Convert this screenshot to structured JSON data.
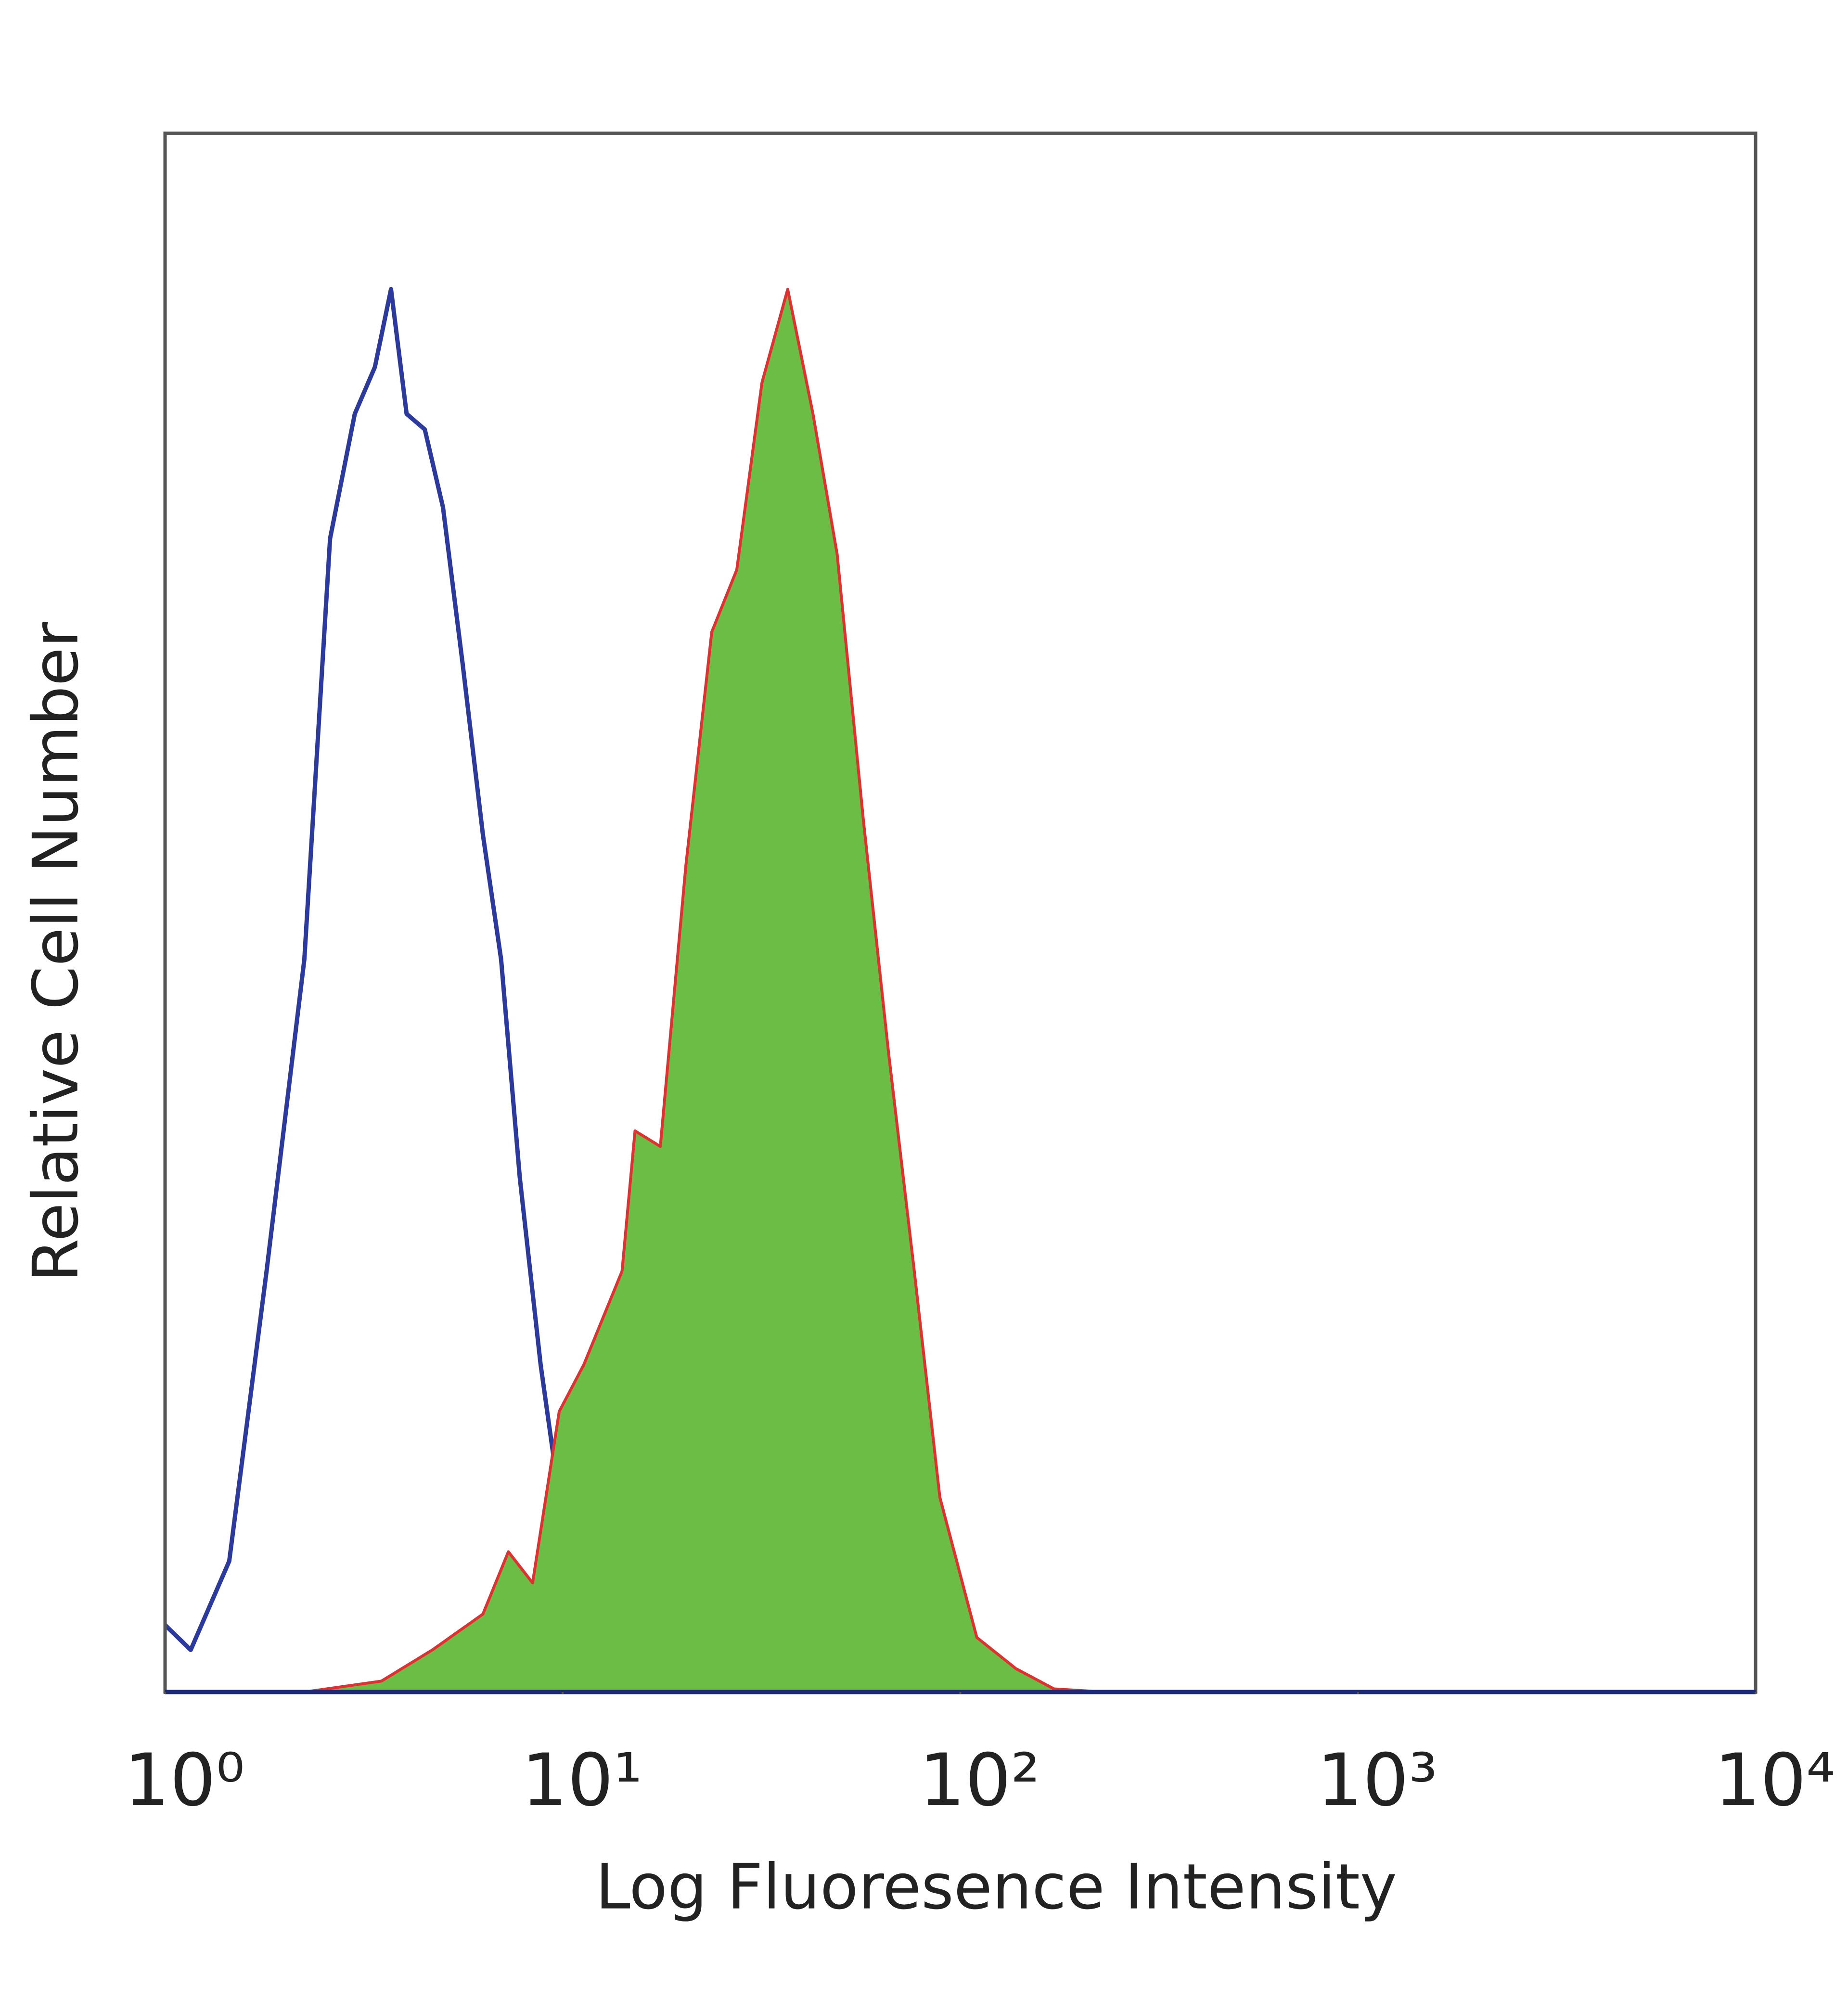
{
  "chart_data": {
    "type": "histogram-line",
    "x_label": "Log Fluoresence Intensity",
    "y_label": "Relative Cell Number",
    "xscale": "log",
    "xlim": [
      1,
      10000
    ],
    "ylim": [
      0,
      100
    ],
    "xticks": [
      {
        "value": 1,
        "label": "10⁰"
      },
      {
        "value": 10,
        "label": "10¹"
      },
      {
        "value": 100,
        "label": "10²"
      },
      {
        "value": 1000,
        "label": "10³"
      },
      {
        "value": 10000,
        "label": "10⁴"
      }
    ],
    "series": [
      {
        "color": "#2b3a9c",
        "filled": false,
        "x": [
          1.0,
          1.16,
          1.45,
          1.8,
          2.24,
          2.6,
          3.0,
          3.37,
          3.7,
          4.05,
          4.5,
          5.0,
          5.6,
          6.3,
          7.0,
          7.8,
          8.8,
          9.8,
          10.9,
          13.1,
          17.6,
          31.7,
          46
        ],
        "values": [
          4.3,
          2.7,
          8.4,
          27,
          47,
          74,
          82,
          85,
          90,
          82,
          81,
          76,
          66,
          55,
          47,
          33,
          21,
          12.5,
          6,
          1.9,
          1.1,
          0.7,
          0
        ]
      },
      {
        "color": "#6cbd45",
        "edge_color": "#e03030",
        "filled": true,
        "x": [
          2.24,
          3.5,
          4.7,
          6.3,
          7.3,
          8.4,
          9.8,
          11.3,
          14.1,
          15.2,
          17.6,
          20.4,
          23.7,
          27.4,
          31.7,
          36.8,
          42.6,
          49,
          57,
          66,
          76.6,
          88.8,
          110,
          138,
          172,
          230
        ],
        "values": [
          0,
          0.7,
          2.7,
          5,
          9,
          7,
          18,
          21,
          27,
          36,
          35,
          53,
          68,
          72,
          84,
          90,
          82,
          73,
          56,
          41,
          27,
          12.5,
          3.5,
          1.5,
          0.2,
          0
        ]
      }
    ]
  }
}
